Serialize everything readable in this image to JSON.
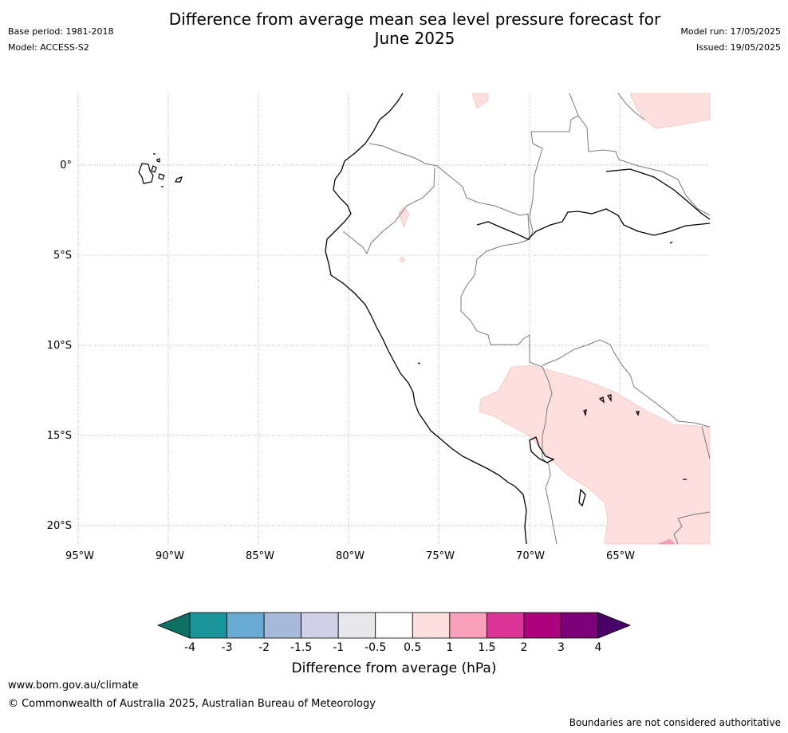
{
  "title_line1": "Difference from average mean sea level pressure forecast for",
  "title_line2": "June 2025",
  "base_period": "Base period: 1981-2018",
  "model": "Model: ACCESS-S2",
  "model_run": "Model run: 17/05/2025",
  "issued": "Issued: 19/05/2025",
  "map": {
    "lat_labels": [
      "0°",
      "5°S",
      "10°S",
      "15°S",
      "20°S"
    ],
    "lon_labels": [
      "95°W",
      "90°W",
      "85°W",
      "80°W",
      "75°W",
      "70°W",
      "65°W"
    ]
  },
  "legend": {
    "title": "Difference from average (hPa)",
    "ticks": [
      "-4",
      "-3",
      "-2",
      "-1.5",
      "-1",
      "-0.5",
      "0.5",
      "1",
      "1.5",
      "2",
      "3",
      "4"
    ],
    "colors": [
      "#0e6f63",
      "#1a9599",
      "#6aabd4",
      "#a8badb",
      "#d0d1e6",
      "#e8e8ec",
      "#ffffff",
      "#fde0de",
      "#f8a0ba",
      "#dd3497",
      "#ae017e",
      "#7a0177",
      "#49006a"
    ]
  },
  "footer": {
    "url": "www.bom.gov.au/climate",
    "copyright": "© Commonwealth of Australia 2025, Australian Bureau of Meteorology",
    "note": "Boundaries are not considered authoritative"
  }
}
